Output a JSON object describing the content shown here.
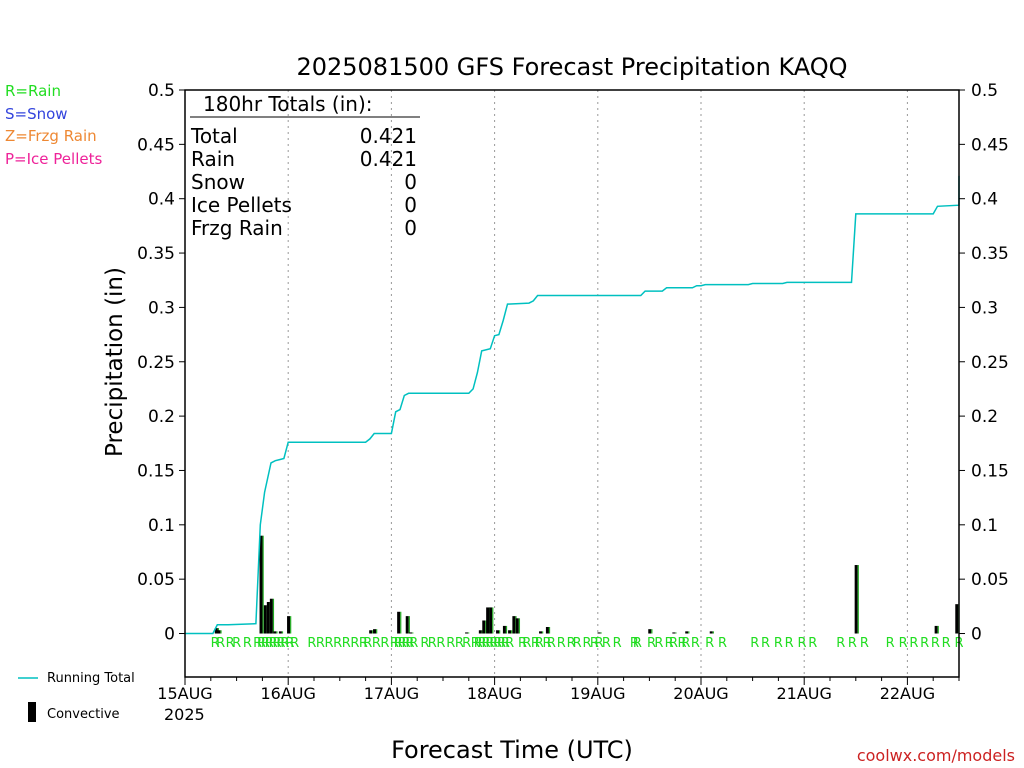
{
  "chart_data": {
    "type": "bar+line",
    "title": "2025081500 GFS Forecast Precipitation KAQQ",
    "ylabel": "Precipitation (in)",
    "xlabel": "Forecast Time (UTC)",
    "ylim": [
      -0.04,
      0.5
    ],
    "xlim_hours": [
      0,
      180
    ],
    "y_ticks": [
      {
        "v": 0,
        "label": "0"
      },
      {
        "v": 0.05,
        "label": "0.05"
      },
      {
        "v": 0.1,
        "label": "0.1"
      },
      {
        "v": 0.15,
        "label": "0.15"
      },
      {
        "v": 0.2,
        "label": "0.2"
      },
      {
        "v": 0.25,
        "label": "0.25"
      },
      {
        "v": 0.3,
        "label": "0.3"
      },
      {
        "v": 0.35,
        "label": "0.35"
      },
      {
        "v": 0.4,
        "label": "0.4"
      },
      {
        "v": 0.45,
        "label": "0.45"
      },
      {
        "v": 0.5,
        "label": "0.5"
      }
    ],
    "x_ticks": [
      {
        "h": 0,
        "label": "15AUG"
      },
      {
        "h": 24,
        "label": "16AUG"
      },
      {
        "h": 48,
        "label": "17AUG"
      },
      {
        "h": 72,
        "label": "18AUG"
      },
      {
        "h": 96,
        "label": "19AUG"
      },
      {
        "h": 120,
        "label": "20AUG"
      },
      {
        "h": 144,
        "label": "21AUG"
      },
      {
        "h": 168,
        "label": "22AUG"
      }
    ],
    "year_label": "2025",
    "grid": "vertical-dotted-daily",
    "running_total": {
      "name": "Running Total",
      "color": "#00c0c0",
      "points": [
        [
          0,
          0
        ],
        [
          6.5,
          0
        ],
        [
          7.5,
          0.008
        ],
        [
          10,
          0.008
        ],
        [
          16.5,
          0.009
        ],
        [
          17.5,
          0.1
        ],
        [
          18.5,
          0.13
        ],
        [
          20,
          0.157
        ],
        [
          21,
          0.159
        ],
        [
          22,
          0.16
        ],
        [
          23,
          0.161
        ],
        [
          24,
          0.176
        ],
        [
          42,
          0.176
        ],
        [
          43,
          0.179
        ],
        [
          44,
          0.184
        ],
        [
          48,
          0.184
        ],
        [
          49,
          0.204
        ],
        [
          50,
          0.206
        ],
        [
          51,
          0.219
        ],
        [
          52,
          0.221
        ],
        [
          66,
          0.221
        ],
        [
          67,
          0.225
        ],
        [
          68,
          0.24
        ],
        [
          69,
          0.26
        ],
        [
          71,
          0.262
        ],
        [
          72,
          0.274
        ],
        [
          73,
          0.275
        ],
        [
          74,
          0.288
        ],
        [
          75,
          0.303
        ],
        [
          80,
          0.304
        ],
        [
          81,
          0.306
        ],
        [
          82,
          0.311
        ],
        [
          106,
          0.311
        ],
        [
          107,
          0.315
        ],
        [
          111,
          0.315
        ],
        [
          112,
          0.318
        ],
        [
          118,
          0.318
        ],
        [
          119,
          0.32
        ],
        [
          120,
          0.32
        ],
        [
          121,
          0.321
        ],
        [
          131,
          0.321
        ],
        [
          132,
          0.322
        ],
        [
          139,
          0.322
        ],
        [
          140,
          0.323
        ],
        [
          155,
          0.323
        ],
        [
          156,
          0.386
        ],
        [
          174,
          0.386
        ],
        [
          175,
          0.393
        ],
        [
          180,
          0.394
        ],
        [
          180,
          0.421
        ]
      ]
    },
    "convective": {
      "name": "Convective",
      "color": "#000000",
      "bars": [
        [
          7.4,
          0.005
        ],
        [
          8,
          0.003
        ],
        [
          17.8,
          0.09
        ],
        [
          18.8,
          0.026
        ],
        [
          19.5,
          0.029
        ],
        [
          20.2,
          0.032
        ],
        [
          21,
          0.002
        ],
        [
          22.3,
          0.002
        ],
        [
          24.2,
          0.016
        ],
        [
          43.3,
          0.003
        ],
        [
          44.2,
          0.004
        ],
        [
          49.8,
          0.02
        ],
        [
          51.8,
          0.016
        ],
        [
          52.6,
          0.001
        ],
        [
          65.6,
          0.001
        ],
        [
          68.8,
          0.003
        ],
        [
          69.6,
          0.012
        ],
        [
          70.5,
          0.024
        ],
        [
          71.2,
          0.024
        ],
        [
          72.8,
          0.003
        ],
        [
          74.4,
          0.007
        ],
        [
          75.6,
          0.003
        ],
        [
          76.6,
          0.016
        ],
        [
          77.4,
          0.014
        ],
        [
          82.8,
          0.002
        ],
        [
          84.4,
          0.006
        ],
        [
          96.4,
          0.001
        ],
        [
          108.2,
          0.004
        ],
        [
          113.8,
          0.001
        ],
        [
          116.8,
          0.002
        ],
        [
          122.5,
          0.002
        ],
        [
          156.2,
          0.063
        ],
        [
          174.8,
          0.007
        ],
        [
          179.6,
          0.027
        ]
      ]
    },
    "rain_markers_hours": [
      7,
      8.3,
      10.5,
      12,
      14.5,
      16.9,
      17.8,
      18.7,
      19.6,
      20.5,
      21.4,
      22.3,
      23.2,
      24.4,
      25.5,
      29.5,
      31.5,
      33.5,
      35.5,
      37.5,
      39.5,
      41.5,
      42.5,
      44.5,
      46.5,
      48.7,
      49.6,
      50.5,
      51.4,
      52.3,
      53.2,
      55.8,
      57.5,
      59.5,
      61.8,
      63.8,
      65.5,
      67.5,
      68.2,
      69.1,
      70,
      70.9,
      71.8,
      72.7,
      73.6,
      74.5,
      75.5,
      78.5,
      79.5,
      81.5,
      82.4,
      84.2,
      85.2,
      87.5,
      89.8,
      91.2,
      93.5,
      95.2,
      96.3,
      98,
      100.5,
      104.5,
      105.2,
      108.5,
      110.2,
      112.6,
      113.6,
      115.6,
      116.5,
      118.7,
      122,
      125,
      132.5,
      135,
      138,
      140.5,
      143.5,
      146,
      152.5,
      155.2,
      158,
      164,
      167,
      169.5,
      172,
      174.5,
      177,
      180
    ]
  },
  "legend": {
    "ptype": [
      {
        "text": "R=Rain",
        "color": "#22dd22"
      },
      {
        "text": "S=Snow",
        "color": "#3344dd"
      },
      {
        "text": "Z=Frzg Rain",
        "color": "#ee8833"
      },
      {
        "text": "P=Ice Pellets",
        "color": "#ee2299"
      }
    ],
    "running_total_label": "Running Total",
    "convective_label": "Convective"
  },
  "totals": {
    "heading": "180hr Totals (in):",
    "rows": [
      {
        "label": "Total",
        "value": "0.421"
      },
      {
        "label": "Rain",
        "value": "0.421"
      },
      {
        "label": "Snow",
        "value": "0"
      },
      {
        "label": "Ice Pellets",
        "value": "0"
      },
      {
        "label": "Frzg Rain",
        "value": "0"
      }
    ]
  },
  "rain_marker_text": "R",
  "rain_marker_color": "#22dd22",
  "credit": {
    "text": "coolwx.com/models",
    "color": "#cc2222"
  }
}
